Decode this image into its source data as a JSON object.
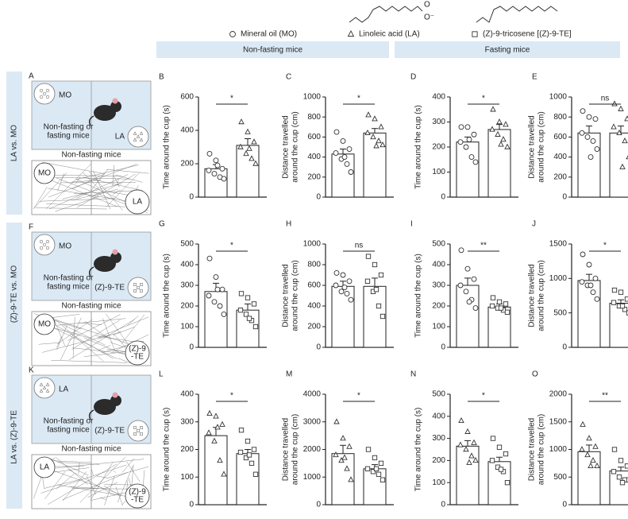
{
  "legend": [
    {
      "label": "Mineral oil (MO)",
      "marker": "circle"
    },
    {
      "label": "Linoleic acid (LA)",
      "marker": "triangle"
    },
    {
      "label": "(Z)-9-tricosene [(Z)-9-TE]",
      "marker": "square"
    }
  ],
  "structure_atoms": [
    "O",
    "O⁻"
  ],
  "headers": [
    "Non-fasting mice",
    "Fasting mice"
  ],
  "rows": [
    {
      "label": "LA vs. MO",
      "diagram": {
        "panel": "A",
        "cup1": "MO",
        "cup1_marker": "circle",
        "cup2": "LA",
        "cup2_marker": "triangle",
        "mouse": [
          "Non-fasting or",
          "fasting mice"
        ],
        "track_title": "Non-fasting mice",
        "track1": "MO",
        "track2": [
          "LA"
        ]
      }
    },
    {
      "label": "(Z)-9-TE vs. MO",
      "diagram": {
        "panel": "F",
        "cup1": "MO",
        "cup1_marker": "circle",
        "cup2": "(Z)-9-TE",
        "cup2_marker": "square",
        "mouse": [
          "Non-fasting or",
          "fasting mice"
        ],
        "track_title": "Non-fasting mice",
        "track1": "MO",
        "track2": [
          "(Z)-9",
          "-TE"
        ]
      }
    },
    {
      "label": "LA vs. (Z)-9-TE",
      "diagram": {
        "panel": "K",
        "cup1": "LA",
        "cup1_marker": "triangle",
        "cup2": "(Z)-9-TE",
        "cup2_marker": "square",
        "mouse": [
          "Non-fasting or",
          "fasting mice"
        ],
        "track_title": "Non-fasting mice",
        "track1": "LA",
        "track2": [
          "(Z)-9",
          "-TE"
        ]
      }
    }
  ],
  "chart_data": [
    {
      "type": "bar",
      "panel": "B",
      "ylabel": [
        "Time around the cup (s)"
      ],
      "ylim": [
        0,
        600
      ],
      "yticks": [
        0,
        200,
        400,
        600
      ],
      "markers": [
        "circle",
        "triangle"
      ],
      "values": [
        170,
        310
      ],
      "errors": [
        25,
        40
      ],
      "points": [
        [
          260,
          220,
          170,
          160,
          140,
          120,
          110,
          190
        ],
        [
          450,
          390,
          330,
          300,
          260,
          230,
          200,
          290
        ]
      ],
      "significance": "*"
    },
    {
      "type": "bar",
      "panel": "C",
      "ylabel": [
        "Distance travelled",
        "around the cup (cm)"
      ],
      "ylim": [
        0,
        1000
      ],
      "yticks": [
        0,
        200,
        400,
        600,
        800,
        1000
      ],
      "markers": [
        "circle",
        "triangle"
      ],
      "values": [
        430,
        640
      ],
      "errors": [
        50,
        45
      ],
      "points": [
        [
          650,
          560,
          480,
          440,
          380,
          330,
          250,
          400
        ],
        [
          820,
          780,
          700,
          640,
          600,
          560,
          520,
          510
        ]
      ],
      "significance": "*"
    },
    {
      "type": "bar",
      "panel": "D",
      "ylabel": [
        "Time around the cup (s)"
      ],
      "ylim": [
        0,
        400
      ],
      "yticks": [
        0,
        100,
        200,
        300,
        400
      ],
      "markers": [
        "circle",
        "triangle"
      ],
      "values": [
        220,
        270
      ],
      "errors": [
        20,
        20
      ],
      "points": [
        [
          280,
          280,
          250,
          220,
          200,
          160,
          140,
          230
        ],
        [
          350,
          300,
          290,
          270,
          250,
          230,
          200,
          210
        ]
      ],
      "significance": "*"
    },
    {
      "type": "bar",
      "panel": "E",
      "ylabel": [
        "Distance travelled",
        "around the cup (cm)"
      ],
      "ylim": [
        0,
        1000
      ],
      "yticks": [
        0,
        200,
        400,
        600,
        800,
        1000
      ],
      "markers": [
        "circle",
        "triangle"
      ],
      "values": [
        640,
        640
      ],
      "errors": [
        70,
        70
      ],
      "points": [
        [
          860,
          800,
          780,
          640,
          600,
          560,
          480,
          400
        ],
        [
          930,
          880,
          780,
          700,
          640,
          560,
          400,
          300
        ]
      ],
      "significance": "ns"
    },
    {
      "type": "bar",
      "panel": "G",
      "ylabel": [
        "Time around the cup (s)"
      ],
      "ylim": [
        0,
        500
      ],
      "yticks": [
        0,
        100,
        200,
        300,
        400,
        500
      ],
      "markers": [
        "circle",
        "square"
      ],
      "values": [
        270,
        180
      ],
      "errors": [
        40,
        30
      ],
      "points": [
        [
          430,
          340,
          280,
          250,
          220,
          200,
          160,
          280
        ],
        [
          260,
          240,
          210,
          180,
          160,
          130,
          100,
          140
        ]
      ],
      "significance": "*"
    },
    {
      "type": "bar",
      "panel": "H",
      "ylabel": [
        "Distance travelled",
        "around the cup (cm)"
      ],
      "ylim": [
        0,
        1000
      ],
      "yticks": [
        0,
        200,
        400,
        600,
        800,
        1000
      ],
      "markers": [
        "circle",
        "square"
      ],
      "values": [
        590,
        590
      ],
      "errors": [
        50,
        80
      ],
      "points": [
        [
          720,
          700,
          640,
          600,
          540,
          520,
          460,
          580
        ],
        [
          880,
          800,
          700,
          640,
          540,
          400,
          300,
          560
        ]
      ],
      "significance": "ns"
    },
    {
      "type": "bar",
      "panel": "I",
      "ylabel": [
        "Time around the cup (s)"
      ],
      "ylim": [
        0,
        500
      ],
      "yticks": [
        0,
        100,
        200,
        300,
        400,
        500
      ],
      "markers": [
        "circle",
        "square"
      ],
      "values": [
        300,
        195
      ],
      "errors": [
        35,
        15
      ],
      "points": [
        [
          470,
          380,
          330,
          300,
          270,
          230,
          190,
          220
        ],
        [
          240,
          220,
          210,
          200,
          190,
          180,
          170,
          190
        ]
      ],
      "significance": "**"
    },
    {
      "type": "bar",
      "panel": "J",
      "ylabel": [
        "Distance travelled",
        "around the cup (cm)"
      ],
      "ylim": [
        0,
        1500
      ],
      "yticks": [
        0,
        500,
        1000,
        1500
      ],
      "markers": [
        "circle",
        "square"
      ],
      "values": [
        970,
        640
      ],
      "errors": [
        90,
        50
      ],
      "points": [
        [
          1350,
          1200,
          1000,
          950,
          900,
          800,
          700,
          900
        ],
        [
          830,
          800,
          700,
          650,
          600,
          550,
          500,
          600
        ]
      ],
      "significance": "*"
    },
    {
      "type": "bar",
      "panel": "L",
      "ylabel": [
        "Time around the cup (s)"
      ],
      "ylim": [
        0,
        400
      ],
      "yticks": [
        0,
        100,
        200,
        300,
        400
      ],
      "markers": [
        "triangle",
        "square"
      ],
      "values": [
        250,
        185
      ],
      "errors": [
        30,
        15
      ],
      "points": [
        [
          330,
          320,
          290,
          260,
          230,
          160,
          110,
          280
        ],
        [
          270,
          230,
          200,
          190,
          170,
          150,
          110,
          180
        ]
      ],
      "significance": "*"
    },
    {
      "type": "bar",
      "panel": "M",
      "ylabel": [
        "Distance travelled",
        "around the cup (cm)"
      ],
      "ylim": [
        0,
        4000
      ],
      "yticks": [
        0,
        1000,
        2000,
        3000,
        4000
      ],
      "markers": [
        "triangle",
        "square"
      ],
      "values": [
        1850,
        1300
      ],
      "errors": [
        300,
        150
      ],
      "points": [
        [
          3000,
          2400,
          2100,
          1800,
          1600,
          1300,
          900,
          1700
        ],
        [
          2000,
          1700,
          1500,
          1300,
          1200,
          1100,
          900,
          1300
        ]
      ],
      "significance": "*"
    },
    {
      "type": "bar",
      "panel": "N",
      "ylabel": [
        "Time around the cup (s)"
      ],
      "ylim": [
        0,
        500
      ],
      "yticks": [
        0,
        100,
        200,
        300,
        400,
        500
      ],
      "markers": [
        "triangle",
        "square"
      ],
      "values": [
        265,
        195
      ],
      "errors": [
        25,
        20
      ],
      "points": [
        [
          380,
          330,
          280,
          270,
          250,
          220,
          200,
          190
        ],
        [
          300,
          260,
          230,
          200,
          170,
          150,
          100,
          160
        ]
      ],
      "significance": "*"
    },
    {
      "type": "bar",
      "panel": "O",
      "ylabel": [
        "Distance travelled",
        "around the cup (cm)"
      ],
      "ylim": [
        0,
        2000
      ],
      "yticks": [
        0,
        500,
        1000,
        1500,
        2000
      ],
      "markers": [
        "triangle",
        "square"
      ],
      "values": [
        960,
        610
      ],
      "errors": [
        120,
        70
      ],
      "points": [
        [
          1450,
          1200,
          1050,
          1000,
          900,
          800,
          700,
          700
        ],
        [
          1000,
          800,
          700,
          600,
          500,
          450,
          450,
          400
        ]
      ],
      "significance": "**"
    }
  ]
}
